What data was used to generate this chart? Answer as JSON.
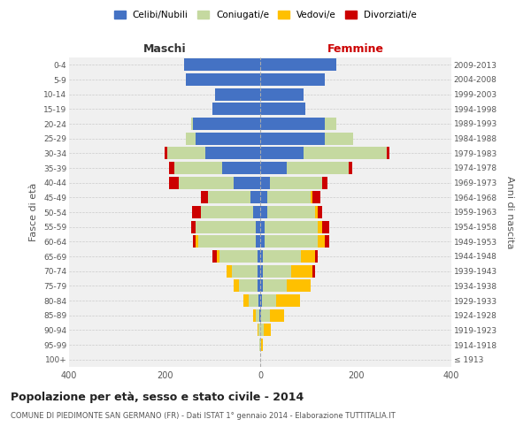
{
  "age_groups": [
    "100+",
    "95-99",
    "90-94",
    "85-89",
    "80-84",
    "75-79",
    "70-74",
    "65-69",
    "60-64",
    "55-59",
    "50-54",
    "45-49",
    "40-44",
    "35-39",
    "30-34",
    "25-29",
    "20-24",
    "15-19",
    "10-14",
    "5-9",
    "0-4"
  ],
  "birth_years": [
    "≤ 1913",
    "1914-1918",
    "1919-1923",
    "1924-1928",
    "1929-1933",
    "1934-1938",
    "1939-1943",
    "1944-1948",
    "1949-1953",
    "1954-1958",
    "1959-1963",
    "1964-1968",
    "1969-1973",
    "1974-1978",
    "1979-1983",
    "1984-1988",
    "1989-1993",
    "1994-1998",
    "1999-2003",
    "2004-2008",
    "2009-2013"
  ],
  "males": {
    "celibi": [
      0,
      0,
      0,
      2,
      3,
      5,
      5,
      5,
      10,
      10,
      15,
      20,
      55,
      80,
      115,
      135,
      140,
      100,
      95,
      155,
      160
    ],
    "coniugati": [
      0,
      1,
      4,
      8,
      22,
      40,
      55,
      80,
      120,
      125,
      110,
      90,
      115,
      100,
      80,
      20,
      5,
      0,
      0,
      0,
      0
    ],
    "vedovi": [
      0,
      0,
      2,
      5,
      10,
      10,
      10,
      5,
      5,
      0,
      0,
      0,
      0,
      0,
      0,
      0,
      0,
      0,
      0,
      0,
      0
    ],
    "divorziati": [
      0,
      0,
      0,
      0,
      0,
      0,
      0,
      10,
      5,
      10,
      18,
      15,
      20,
      10,
      5,
      0,
      0,
      0,
      0,
      0,
      0
    ]
  },
  "females": {
    "nubili": [
      0,
      0,
      0,
      2,
      3,
      5,
      5,
      5,
      10,
      10,
      15,
      15,
      20,
      55,
      90,
      135,
      135,
      95,
      90,
      135,
      160
    ],
    "coniugate": [
      0,
      2,
      8,
      18,
      30,
      50,
      60,
      80,
      110,
      110,
      100,
      90,
      110,
      130,
      175,
      60,
      25,
      0,
      0,
      0,
      0
    ],
    "vedove": [
      0,
      3,
      15,
      30,
      50,
      50,
      45,
      30,
      15,
      10,
      5,
      5,
      0,
      0,
      0,
      0,
      0,
      0,
      0,
      0,
      0
    ],
    "divorziate": [
      0,
      0,
      0,
      0,
      0,
      0,
      5,
      5,
      10,
      15,
      10,
      15,
      10,
      8,
      5,
      0,
      0,
      0,
      0,
      0,
      0
    ]
  },
  "colors": {
    "celibi_nubili": "#4472c4",
    "coniugati": "#c5d9a0",
    "vedovi": "#ffc000",
    "divorziati": "#cc0000"
  },
  "title": "Popolazione per età, sesso e stato civile - 2014",
  "subtitle": "COMUNE DI PIEDIMONTE SAN GERMANO (FR) - Dati ISTAT 1° gennaio 2014 - Elaborazione TUTTITALIA.IT",
  "xlabel_left": "Maschi",
  "xlabel_right": "Femmine",
  "ylabel_left": "Fasce di età",
  "ylabel_right": "Anni di nascita",
  "xlim": 400,
  "background_color": "#ffffff",
  "plot_bg_color": "#f0f0f0",
  "grid_color": "#cccccc",
  "legend_labels": [
    "Celibi/Nubili",
    "Coniugati/e",
    "Vedovi/e",
    "Divorziati/e"
  ]
}
